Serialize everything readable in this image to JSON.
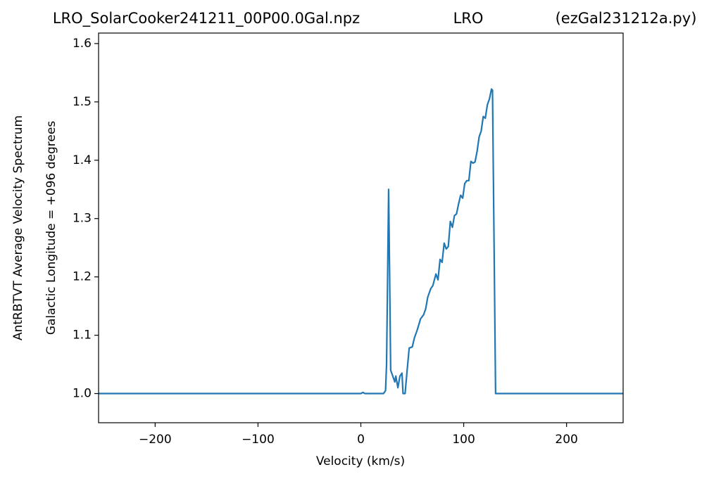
{
  "chart_data": {
    "type": "line",
    "titles": [
      "LRO_SolarCooker241211_00P00.0Gal.npz",
      "LRO",
      "(ezGal231212a.py)"
    ],
    "xlabel": "Velocity (km/s)",
    "ylabel": [
      "AntRBTVT Average Velocity Spectrum",
      "Galactic Longitude = +096 degrees"
    ],
    "color": "#1f77b4",
    "x": [
      -255,
      0,
      2,
      4,
      22,
      24,
      25,
      27,
      28,
      29,
      31,
      33,
      34,
      36,
      38,
      40,
      41,
      43,
      45,
      47,
      50,
      52,
      55,
      58,
      61,
      63,
      65,
      68,
      70,
      73,
      75,
      77,
      79,
      81,
      83,
      85,
      87,
      89,
      91,
      93,
      95,
      97,
      99,
      101,
      103,
      105,
      107,
      109,
      111,
      113,
      115,
      117,
      119,
      121,
      123,
      125,
      127,
      128,
      131,
      255
    ],
    "values": [
      1.0,
      1.0,
      1.002,
      1.0,
      1.0,
      1.005,
      1.05,
      1.35,
      1.2,
      1.04,
      1.03,
      1.02,
      1.03,
      1.01,
      1.03,
      1.035,
      1.0,
      1.0,
      1.04,
      1.078,
      1.08,
      1.095,
      1.11,
      1.128,
      1.135,
      1.145,
      1.165,
      1.18,
      1.185,
      1.205,
      1.195,
      1.23,
      1.225,
      1.258,
      1.248,
      1.252,
      1.295,
      1.285,
      1.305,
      1.308,
      1.325,
      1.34,
      1.335,
      1.36,
      1.365,
      1.365,
      1.398,
      1.395,
      1.397,
      1.415,
      1.44,
      1.45,
      1.475,
      1.472,
      1.495,
      1.505,
      1.522,
      1.52,
      1.0,
      1.0
    ],
    "xlim": [
      -255,
      255
    ],
    "xticks": [
      {
        "value": -200,
        "label": "−200"
      },
      {
        "value": -100,
        "label": "−100"
      },
      0,
      100,
      200
    ],
    "ylim": [
      0.95,
      1.618
    ],
    "yticks": [
      {
        "value": 1.0,
        "label": "1.0"
      },
      1.1,
      1.2,
      1.3,
      1.4,
      1.5,
      1.6
    ]
  }
}
